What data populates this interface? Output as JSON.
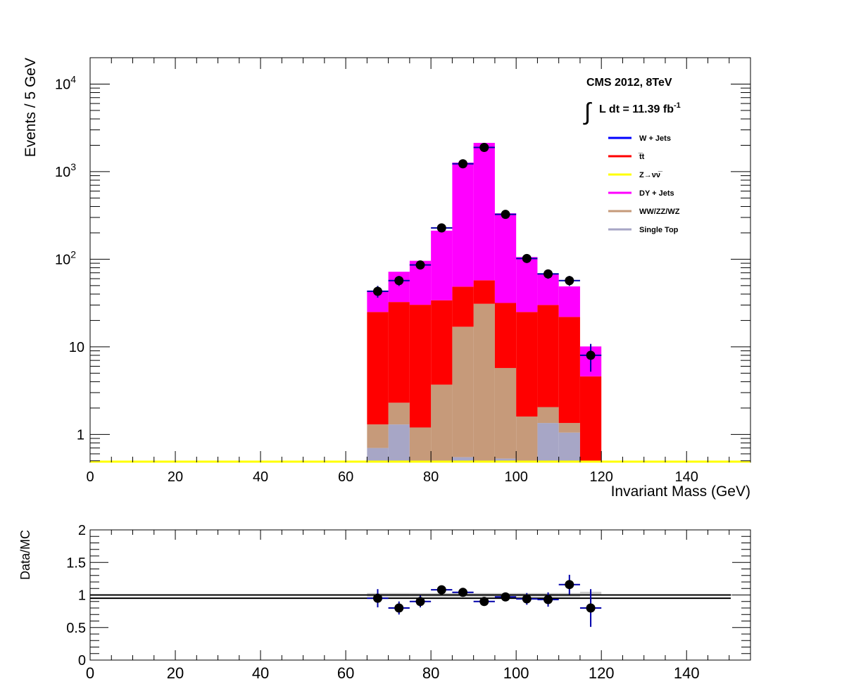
{
  "chart_data": [
    {
      "type": "bar",
      "stacked": true,
      "x_bin_width": 5,
      "x_bins_lower_edge": [
        65,
        70,
        75,
        80,
        85,
        90,
        95,
        100,
        105,
        110,
        115
      ],
      "xlim": [
        0,
        155
      ],
      "ylim": [
        0.48,
        20000
      ],
      "y_scale": "log",
      "xlabel": "Invariant Mass (GeV)",
      "ylabel": "Events / 5 GeV",
      "x_ticks": [
        0,
        20,
        40,
        60,
        80,
        100,
        120,
        140
      ],
      "y_ticks": [
        {
          "value": 1,
          "label": "1"
        },
        {
          "value": 10,
          "label": "10"
        },
        {
          "value": 100,
          "label": "10",
          "exp": "2"
        },
        {
          "value": 1000,
          "label": "10",
          "exp": "3"
        },
        {
          "value": 10000,
          "label": "10",
          "exp": "4"
        }
      ],
      "series": [
        {
          "name": "Single Top",
          "color": "#a7a6c6",
          "values": [
            0.7,
            1.3,
            0,
            0,
            0.55,
            0,
            0.53,
            0,
            1.35,
            1.05,
            0
          ]
        },
        {
          "name": "WW/ZZ/WZ",
          "color": "#c69a7a",
          "values": [
            0.6,
            1.0,
            1.2,
            3.7,
            16.4,
            31.0,
            5.2,
            1.6,
            0.7,
            0.3,
            0
          ]
        },
        {
          "name": "t̅t",
          "color": "#ff0000",
          "values": [
            23.7,
            30.2,
            29.0,
            30.3,
            31.7,
            26.5,
            26.0,
            23.4,
            28.0,
            20.6,
            4.6
          ]
        },
        {
          "name": "DY + Jets",
          "color": "#ff00ff",
          "values": [
            19.0,
            39.5,
            65.8,
            178.0,
            1220.0,
            2072.0,
            303.0,
            81.0,
            37.0,
            27.0,
            5.5
          ]
        },
        {
          "name": "Z→νν̅",
          "color": "#ffff00",
          "values": []
        },
        {
          "name": "W + Jets",
          "color": "#0000ff",
          "values": []
        }
      ],
      "data_points": {
        "color": "#000000",
        "error_color": "#0000aa",
        "x": [
          67.5,
          72.5,
          77.5,
          82.5,
          87.5,
          92.5,
          97.5,
          102.5,
          107.5,
          112.5,
          117.5
        ],
        "y": [
          43,
          57,
          86,
          228,
          1230,
          1890,
          325,
          102,
          68,
          57,
          8
        ],
        "y_err": [
          6.6,
          7.5,
          9.3,
          15.1,
          35,
          43.5,
          18,
          10.1,
          8.2,
          7.5,
          2.8
        ]
      },
      "legend": {
        "position": "top-right",
        "entries": [
          {
            "label": "W + Jets",
            "color": "#0000ff"
          },
          {
            "label": "t̅t",
            "color": "#ff0000"
          },
          {
            "label": "Z→νν̅",
            "color": "#ffff00"
          },
          {
            "label": "DY + Jets",
            "color": "#ff00ff"
          },
          {
            "label": "WW/ZZ/WZ",
            "color": "#c69a7a"
          },
          {
            "label": "Single Top",
            "color": "#a7a6c6"
          }
        ]
      },
      "annotations": {
        "experiment": "CMS 2012, 8TeV",
        "lumi_integral_symbol": "∫",
        "lumi_text": "L dt = 11.39 fb",
        "lumi_exp": "-1"
      }
    },
    {
      "type": "scatter",
      "xlim": [
        0,
        155
      ],
      "ylim": [
        0,
        2
      ],
      "ylabel": "Data/MC",
      "x_ticks": [
        0,
        20,
        40,
        60,
        80,
        100,
        120,
        140
      ],
      "y_ticks": [
        {
          "value": 0,
          "label": "0"
        },
        {
          "value": 0.5,
          "label": "0.5"
        },
        {
          "value": 1,
          "label": "1"
        },
        {
          "value": 1.5,
          "label": "1.5"
        },
        {
          "value": 2,
          "label": "2"
        }
      ],
      "reference_lines": [
        1.0,
        0.95
      ],
      "uncertainty_band": {
        "color": "#c0c0c0",
        "x_range": [
          65,
          120
        ],
        "values": [
          1.0,
          1.0,
          1.0,
          1.0,
          1.0,
          1.0,
          1.0,
          1.0,
          1.0,
          1.0,
          1.02
        ]
      },
      "x": [
        67.5,
        72.5,
        77.5,
        82.5,
        87.5,
        92.5,
        97.5,
        102.5,
        107.5,
        112.5,
        117.5
      ],
      "y": [
        0.95,
        0.8,
        0.9,
        1.08,
        1.04,
        0.9,
        0.97,
        0.94,
        0.93,
        1.16,
        0.8
      ],
      "y_err": [
        0.14,
        0.1,
        0.09,
        0.06,
        0.03,
        0.02,
        0.05,
        0.09,
        0.11,
        0.15,
        0.29
      ]
    }
  ]
}
